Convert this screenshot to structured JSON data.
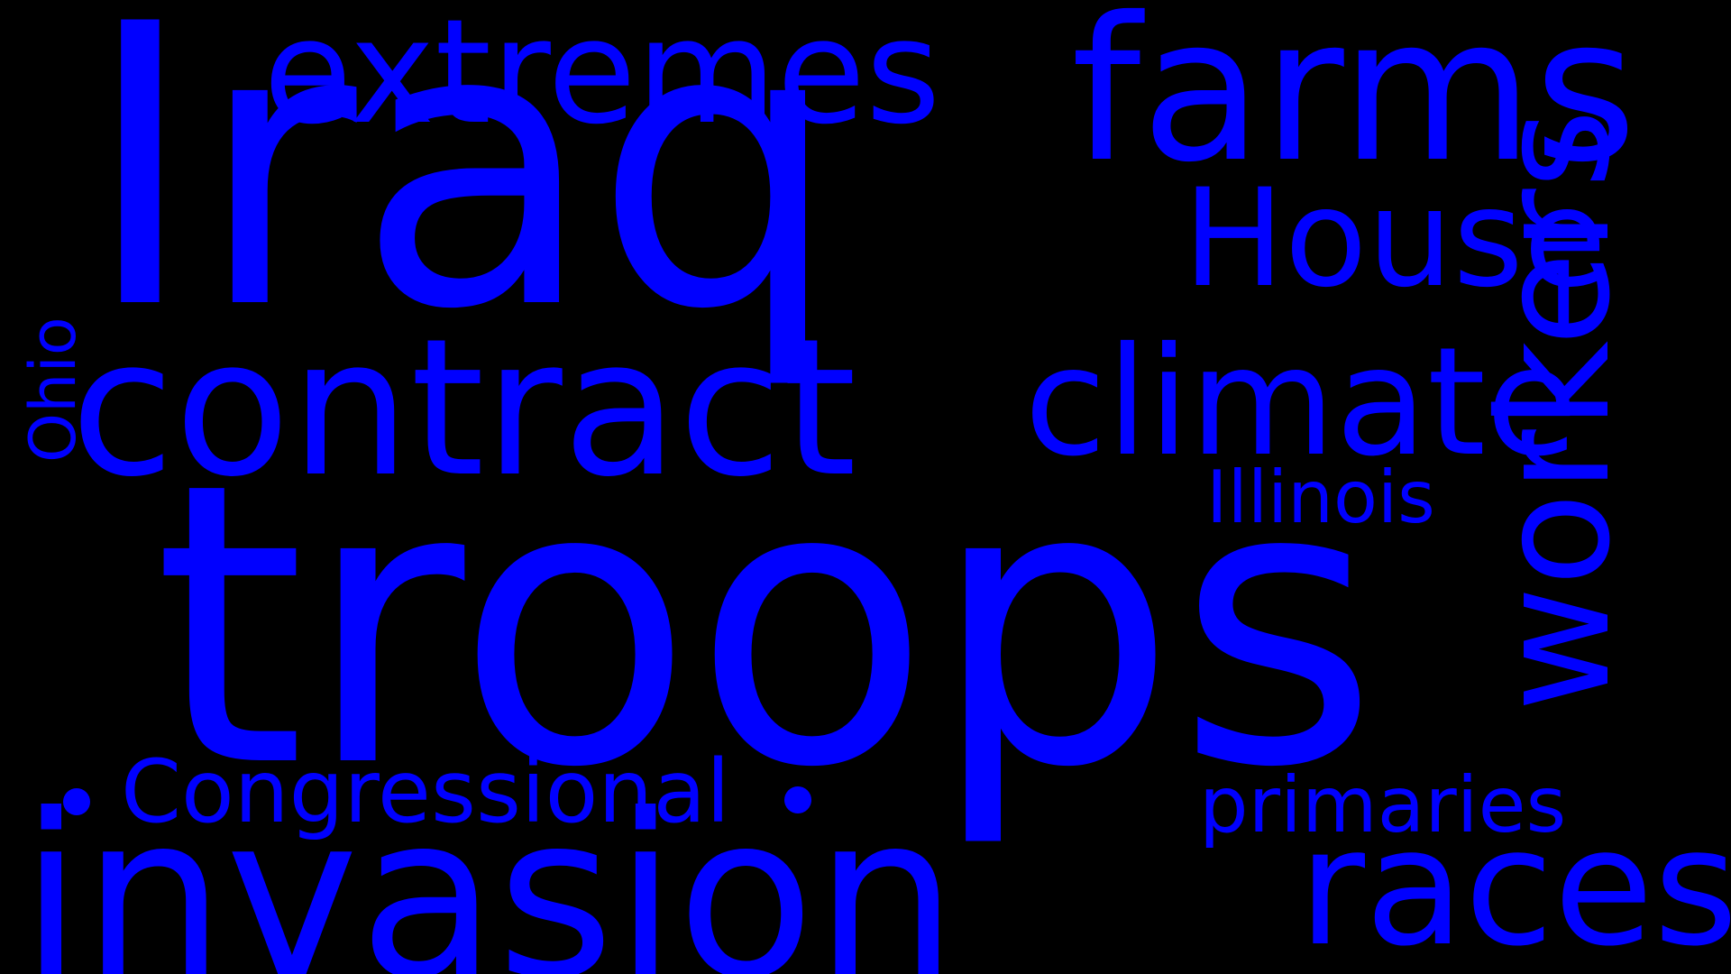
{
  "colors": {
    "background": "#000000",
    "word": "#0000ff"
  },
  "words": {
    "iraq": "Iraq",
    "troops": "troops",
    "invasion": "invasion",
    "contract": "contract",
    "extremes": "extremes",
    "farms": "farms",
    "house": "House",
    "climate": "climate",
    "workers": "workers",
    "races": "races",
    "congressional": "Congressional",
    "primaries": "primaries",
    "illinois": "Illinois",
    "ohio": "Ohio"
  }
}
